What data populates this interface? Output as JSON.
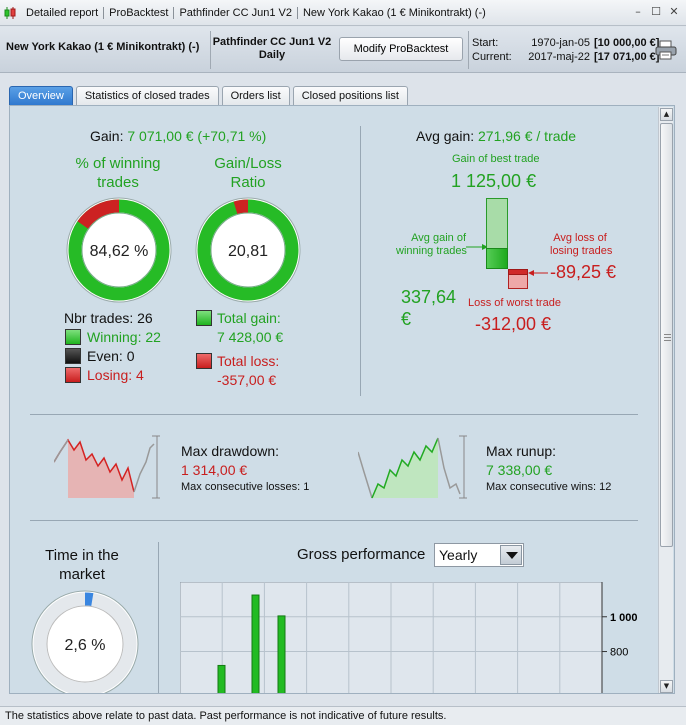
{
  "titlebar": {
    "segments": [
      "Detailed report",
      "ProBacktest",
      "Pathfinder CC Jun1 V2",
      "New York Kakao (1 € Minikontrakt) (-)"
    ]
  },
  "header": {
    "instrument": "New York Kakao (1 € Minikontrakt) (-)",
    "strategy_name": "Pathfinder CC Jun1 V2",
    "timeframe": "Daily",
    "modify_button": "Modify ProBacktest",
    "start_label": "Start:",
    "start_date": "1970-jan-05",
    "start_amount": "[10 000,00 €]",
    "current_label": "Current:",
    "current_date": "2017-maj-22",
    "current_amount": "[17 071,00 €]"
  },
  "tabs": [
    {
      "label": "Overview",
      "active": true
    },
    {
      "label": "Statistics of closed trades",
      "active": false
    },
    {
      "label": "Orders list",
      "active": false
    },
    {
      "label": "Closed positions list",
      "active": false
    }
  ],
  "gain": {
    "label": "Gain:",
    "value": "7 071,00 € (+70,71 %)"
  },
  "winning_pct": {
    "title_line1": "% of winning",
    "title_line2": "trades",
    "value": "84,62 %",
    "fraction": 0.8462
  },
  "gain_loss_ratio": {
    "title_line1": "Gain/Loss",
    "title_line2": "Ratio",
    "value": "20,81",
    "loss_fraction": 0.046
  },
  "trades": {
    "nbr_label": "Nbr trades: 26",
    "winning": "Winning: 22",
    "even": "Even: 0",
    "losing": "Losing: 4",
    "total_gain_label": "Total gain:",
    "total_gain_value": "7 428,00 €",
    "total_loss_label": "Total loss:",
    "total_loss_value": "-357,00 €"
  },
  "avg_gain": {
    "label": "Avg gain:",
    "value": "271,96 € / trade",
    "best_label": "Gain of best trade",
    "best_value": "1 125,00 €",
    "avg_win_label_1": "Avg gain of",
    "avg_win_label_2": "winning trades",
    "avg_win_value_1": "337,64",
    "avg_win_value_2": "€",
    "avg_loss_label_1": "Avg loss of",
    "avg_loss_label_2": "losing trades",
    "avg_loss_value": "-89,25 €",
    "worst_label": "Loss of worst trade",
    "worst_value": "-312,00 €"
  },
  "drawdown": {
    "label": "Max drawdown:",
    "value": "1 314,00 €",
    "consecutive": "Max consecutive losses: 1"
  },
  "runup": {
    "label": "Max runup:",
    "value": "7 338,00 €",
    "consecutive": "Max consecutive wins: 12"
  },
  "time_in_market": {
    "title_line1": "Time in the",
    "title_line2": "market",
    "value": "2,6 %",
    "fraction": 0.026
  },
  "gross_performance": {
    "label": "Gross performance",
    "period_selected": "Yearly"
  },
  "chart_data": {
    "type": "bar",
    "title": "Gross performance",
    "ylim": [
      550,
      1200
    ],
    "y_ticks": [
      {
        "value": 1000,
        "label": "1 000"
      },
      {
        "value": 800,
        "label": "800"
      }
    ],
    "values": [
      720,
      1125,
      1005
    ],
    "grid": true,
    "colors": {
      "positive": "#22bb22"
    }
  },
  "footer": {
    "disclaimer": "The statistics above relate to past data. Past performance is not indicative of future results."
  },
  "colors": {
    "gain_green": "#22a222",
    "loss_red": "#c81e1e",
    "active_tab": "#2f78cf",
    "panel_bg": "#cfdde7"
  }
}
